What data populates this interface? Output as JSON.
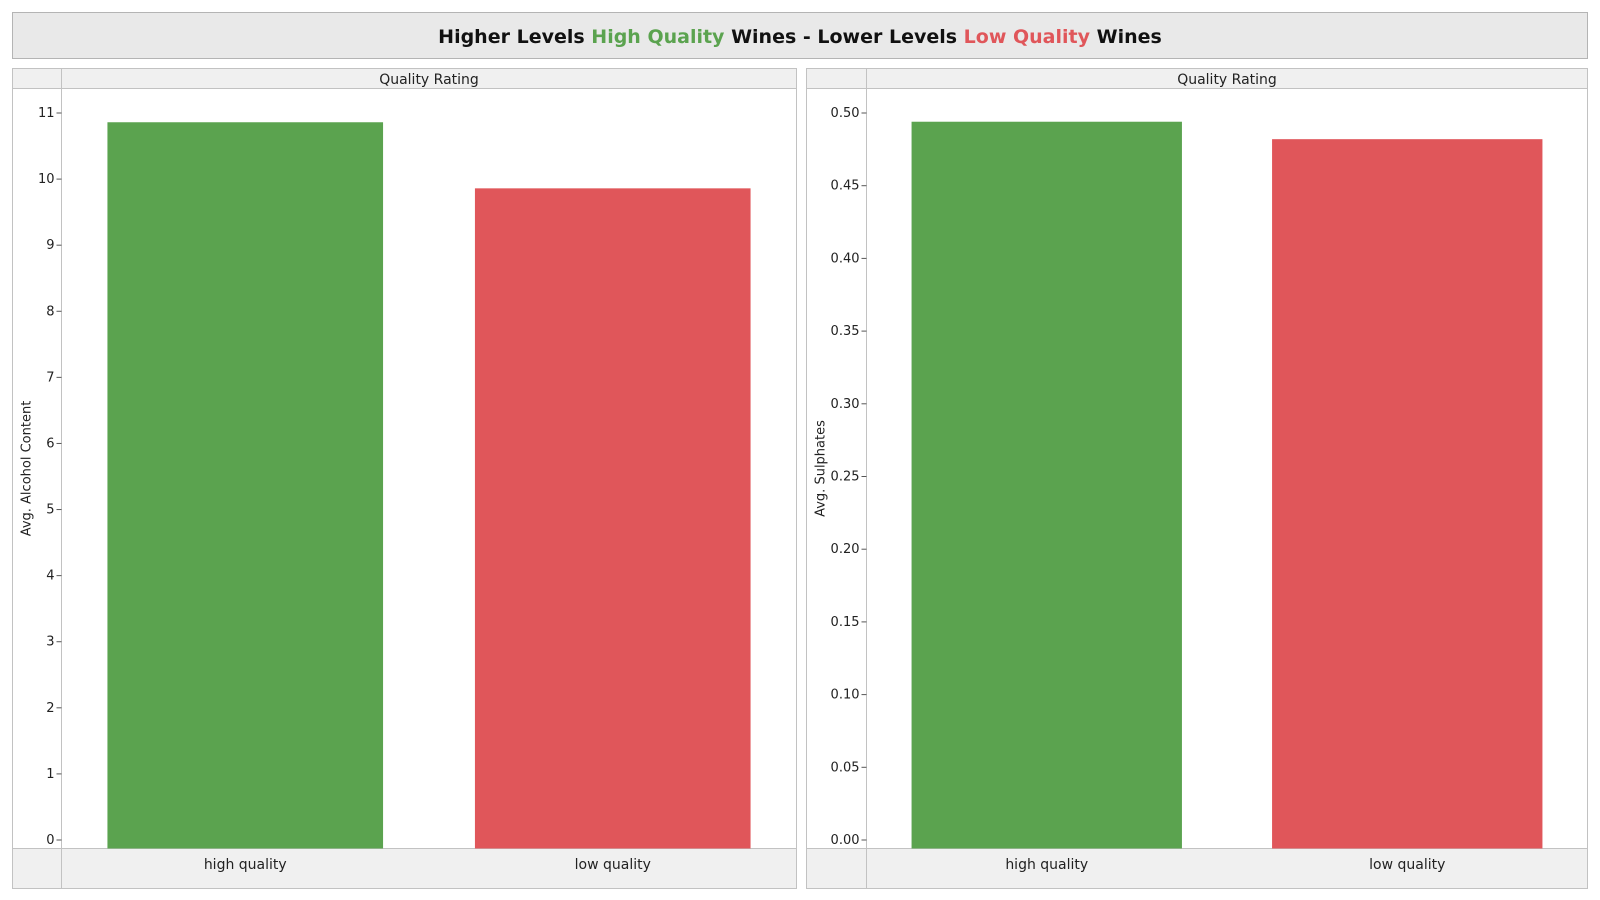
{
  "title": {
    "part1": "Higher Levels ",
    "part2": "High Quality",
    "part3": " Wines  -  Lower Levels ",
    "part4": "Low Quality",
    "part5": " Wines",
    "high_color": "#5ba34f",
    "low_color": "#e0565a"
  },
  "chart_data": [
    {
      "type": "bar",
      "header": "Quality Rating",
      "ylabel": "Avg. Alcohol Content",
      "categories": [
        "high quality",
        "low quality"
      ],
      "values": [
        10.86,
        9.86
      ],
      "colors": [
        "#5ba34f",
        "#e0565a"
      ],
      "ylim": [
        0,
        11
      ],
      "yticks": [
        0,
        1,
        2,
        3,
        4,
        5,
        6,
        7,
        8,
        9,
        10,
        11
      ],
      "ytick_labels": [
        "0",
        "1",
        "2",
        "3",
        "4",
        "5",
        "6",
        "7",
        "8",
        "9",
        "10",
        "11"
      ],
      "grid": false
    },
    {
      "type": "bar",
      "header": "Quality Rating",
      "ylabel": "Avg. Sulphates",
      "categories": [
        "high quality",
        "low quality"
      ],
      "values": [
        0.494,
        0.482
      ],
      "colors": [
        "#5ba34f",
        "#e0565a"
      ],
      "ylim": [
        0,
        0.5
      ],
      "yticks": [
        0,
        0.05,
        0.1,
        0.15,
        0.2,
        0.25,
        0.3,
        0.35,
        0.4,
        0.45,
        0.5
      ],
      "ytick_labels": [
        "0.00",
        "0.05",
        "0.10",
        "0.15",
        "0.20",
        "0.25",
        "0.30",
        "0.35",
        "0.40",
        "0.45",
        "0.50"
      ],
      "grid": false
    }
  ]
}
